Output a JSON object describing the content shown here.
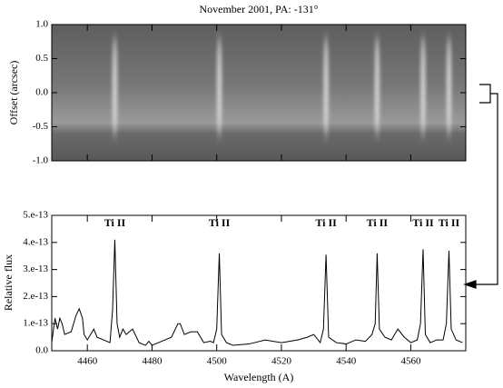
{
  "chart_data": [
    {
      "type": "image",
      "title": "November 2001, PA: -131°",
      "ylabel": "Offset (arcsec)",
      "ylim": [
        -1,
        1
      ],
      "yticks": [
        {
          "value": 1,
          "label": "1.0"
        },
        0.5,
        {
          "value": 0,
          "label": "0.0"
        },
        -0.5,
        {
          "value": -1,
          "label": "-1.0"
        }
      ]
    },
    {
      "type": "line",
      "xlabel": "Wavelength (A)",
      "ylabel": "Relative flux",
      "color": "#000000",
      "xlim": [
        4449,
        4577
      ],
      "ylim": [
        0,
        5e-13
      ],
      "xticks": [
        4460,
        4480,
        4500,
        4520,
        4540,
        4560
      ],
      "yticks": [
        {
          "value": 5e-13,
          "label": "5.e-13"
        },
        {
          "value": 4e-13,
          "label": "4.e-13"
        },
        {
          "value": 3e-13,
          "label": "3.e-13"
        },
        {
          "value": 2e-13,
          "label": "2.e-13"
        },
        {
          "value": 1e-13,
          "label": "1.e-13"
        },
        {
          "value": 0,
          "label": "0.0"
        }
      ],
      "annotations": [
        {
          "text": "Ti II",
          "x": 4468.5
        },
        {
          "text": "Ti II",
          "x": 4500.8
        },
        {
          "text": "Ti II",
          "x": 4533.8
        },
        {
          "text": "Ti II",
          "x": 4549.6
        },
        {
          "text": "Ti II",
          "x": 4563.8
        },
        {
          "text": "Ti II",
          "x": 4571.8
        }
      ],
      "x": [
        4449,
        4450,
        4450.8,
        4451.5,
        4452.2,
        4453,
        4455,
        4456.5,
        4457.5,
        4458.5,
        4459,
        4460,
        4462,
        4463,
        4465,
        4467,
        4467.8,
        4468.5,
        4469.2,
        4470,
        4471,
        4472,
        4473,
        4474,
        4476,
        4478,
        4479,
        4480,
        4482,
        4484,
        4486,
        4488,
        4488.7,
        4490,
        4492,
        4494,
        4496,
        4498,
        4499,
        4500,
        4500.8,
        4501.5,
        4503,
        4505,
        4510,
        4515,
        4520,
        4525,
        4528,
        4530,
        4532,
        4533,
        4533.8,
        4534.6,
        4537,
        4540,
        4543,
        4546,
        4548,
        4549,
        4549.6,
        4550.3,
        4552,
        4554,
        4556,
        4558,
        4560,
        4562,
        4563,
        4563.8,
        4564.5,
        4566,
        4568,
        4570,
        4571,
        4571.8,
        4572.5,
        4574,
        4576
      ],
      "values": [
        3e-14,
        1.2e-13,
        8e-14,
        1.2e-13,
        1e-13,
        6e-14,
        7e-14,
        1.3e-13,
        1.55e-13,
        1.2e-13,
        6e-14,
        4e-14,
        8e-14,
        5e-14,
        4e-14,
        3e-14,
        1.5e-13,
        4.1e-13,
        1e-13,
        5e-14,
        8e-14,
        6e-14,
        7e-14,
        8e-14,
        3e-14,
        2e-14,
        3.5e-14,
        2e-14,
        3e-14,
        4e-14,
        5e-14,
        1e-13,
        1e-13,
        6e-14,
        7e-14,
        7e-14,
        3e-14,
        3.5e-14,
        3e-14,
        8e-14,
        3.6e-13,
        6e-14,
        3e-14,
        2e-14,
        2.5e-14,
        4e-14,
        3e-14,
        4e-14,
        5e-14,
        6e-14,
        3e-14,
        8e-14,
        3.55e-13,
        5e-14,
        3e-14,
        2.5e-14,
        4e-14,
        3.5e-14,
        6e-14,
        1e-13,
        3.6e-13,
        8e-14,
        5e-14,
        4e-14,
        8e-14,
        5e-14,
        3e-14,
        4e-14,
        1e-13,
        3.75e-13,
        6e-14,
        3e-14,
        4e-14,
        4e-14,
        1e-13,
        3.7e-13,
        8e-14,
        4e-14,
        3e-14
      ]
    }
  ]
}
